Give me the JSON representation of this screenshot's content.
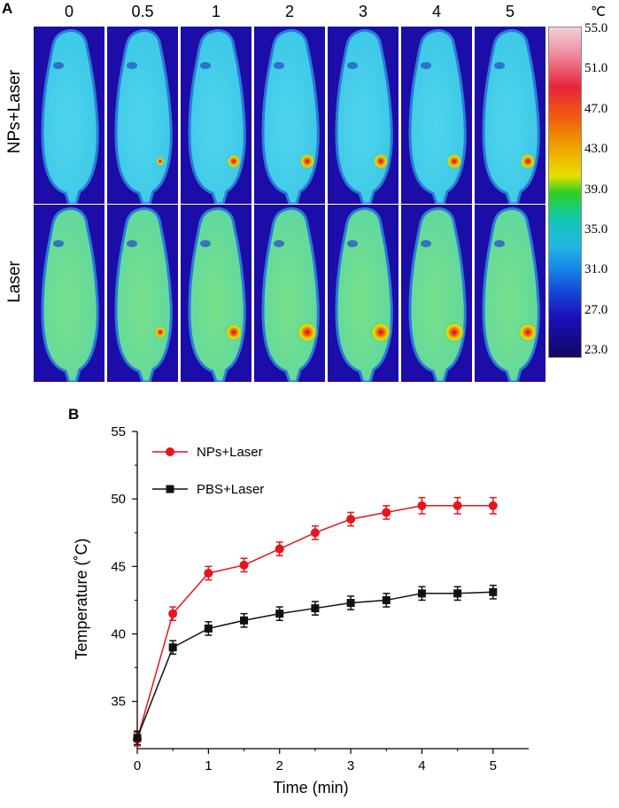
{
  "panel_a": {
    "label": "A",
    "time_labels": [
      "0",
      "0.5",
      "1",
      "2",
      "3",
      "4",
      "5"
    ],
    "row_labels": [
      "NPs+Laser",
      "Laser"
    ],
    "colorbar": {
      "unit": "℃",
      "ticks": [
        "55.0",
        "51.0",
        "47.0",
        "43.0",
        "39.0",
        "35.0",
        "31.0",
        "27.0",
        "23.0"
      ],
      "colors": [
        "#f3d0d8",
        "#e8243a",
        "#f0a000",
        "#e8e000",
        "#30d020",
        "#20b8e0",
        "#1448d8",
        "#120860"
      ]
    }
  },
  "panel_b": {
    "label": "B"
  },
  "chart_data": {
    "type": "line",
    "title": "",
    "xlabel": "Time (min)",
    "ylabel": "Temperature (˚C)",
    "xlim": [
      0,
      5.5
    ],
    "ylim": [
      31.5,
      55
    ],
    "xticks": [
      0,
      1,
      2,
      3,
      4,
      5
    ],
    "yticks": [
      35,
      40,
      45,
      50,
      55
    ],
    "legend_position": "top-left",
    "series": [
      {
        "name": "NPs+Laser",
        "color": "#e8141c",
        "marker": "circle",
        "x": [
          0,
          0.5,
          1,
          1.5,
          2,
          2.5,
          3,
          3.5,
          4,
          4.5,
          5
        ],
        "values": [
          32.2,
          41.5,
          44.5,
          45.1,
          46.3,
          47.5,
          48.5,
          49.0,
          49.5,
          49.5,
          49.5
        ],
        "errors": [
          0.5,
          0.5,
          0.5,
          0.5,
          0.5,
          0.5,
          0.5,
          0.5,
          0.6,
          0.6,
          0.6
        ]
      },
      {
        "name": "PBS+Laser",
        "color": "#111111",
        "marker": "square",
        "x": [
          0,
          0.5,
          1,
          1.5,
          2,
          2.5,
          3,
          3.5,
          4,
          4.5,
          5
        ],
        "values": [
          32.3,
          39.0,
          40.4,
          41.0,
          41.5,
          41.9,
          42.3,
          42.5,
          43.0,
          43.0,
          43.1
        ],
        "errors": [
          0.5,
          0.5,
          0.5,
          0.5,
          0.5,
          0.5,
          0.5,
          0.5,
          0.5,
          0.5,
          0.5
        ]
      }
    ]
  }
}
